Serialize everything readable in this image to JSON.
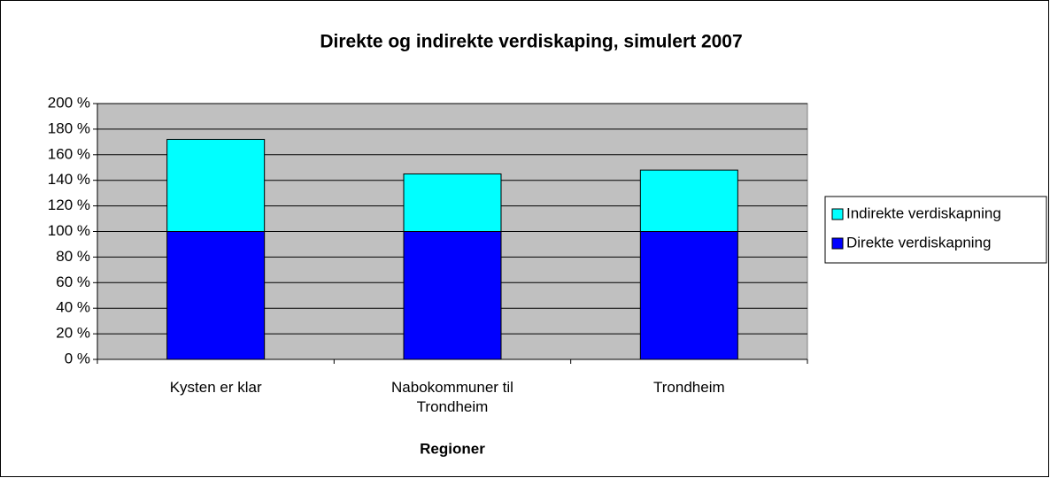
{
  "chart_data": {
    "type": "stacked_bar",
    "title": "Direkte og indirekte verdiskaping, simulert 2007",
    "x_label": "Regioner",
    "categories": [
      "Kysten er klar",
      "Nabokommuner til Trondheim",
      "Trondheim"
    ],
    "series": [
      {
        "name": "Direkte verdiskapning",
        "color": "#0000ff",
        "values": [
          100,
          100,
          100
        ]
      },
      {
        "name": "Indirekte verdiskapning",
        "color": "#00ffff",
        "values": [
          72,
          45,
          48
        ]
      }
    ],
    "ylim": [
      0,
      200
    ],
    "yticks": [
      {
        "value": 0,
        "label": "0 %"
      },
      {
        "value": 20,
        "label": "20 %"
      },
      {
        "value": 40,
        "label": "40 %"
      },
      {
        "value": 60,
        "label": "60 %"
      },
      {
        "value": 80,
        "label": "80 %"
      },
      {
        "value": 100,
        "label": "100 %"
      },
      {
        "value": 120,
        "label": "120 %"
      },
      {
        "value": 140,
        "label": "140 %"
      },
      {
        "value": 160,
        "label": "160 %"
      },
      {
        "value": 180,
        "label": "180 %"
      },
      {
        "value": 200,
        "label": "200 %"
      }
    ],
    "grid": true,
    "plot_background": "#c0c0c0",
    "legend": "right"
  }
}
